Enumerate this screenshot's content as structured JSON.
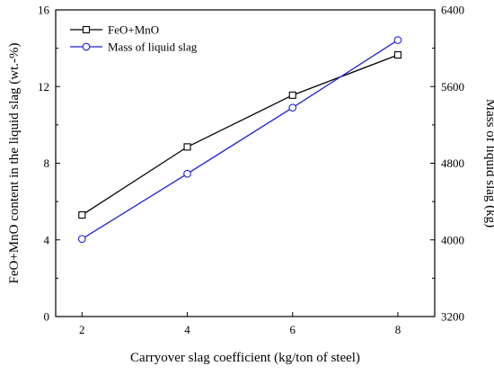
{
  "chart_data": {
    "type": "line",
    "title": "",
    "xlabel": "Carryover slag coefficient (kg/ton of steel)",
    "ylabel_left": "FeO+MnO content in the liquid slag (wt.-%)",
    "ylabel_right": "Mass of liquid slag (kg)",
    "xlim": [
      1.5,
      8.7
    ],
    "ylim_left": [
      0,
      16
    ],
    "ylim_right": [
      3200,
      6400
    ],
    "x_ticks": [
      2,
      4,
      6,
      8
    ],
    "y_ticks_left": [
      0,
      4,
      8,
      12,
      16
    ],
    "y_ticks_right": [
      3200,
      4000,
      4800,
      5600,
      6400
    ],
    "grid": false,
    "legend_position": "top-left",
    "x": [
      2,
      4,
      6,
      8
    ],
    "series": [
      {
        "name": "FeO+MnO",
        "axis": "left",
        "marker": "square",
        "color": "#000000",
        "values": [
          5.3,
          8.85,
          11.55,
          13.65
        ]
      },
      {
        "name": "Mass of liquid slag",
        "axis": "right",
        "marker": "circle",
        "color": "#1f1fd6",
        "values": [
          4010,
          4690,
          5380,
          6085
        ]
      }
    ]
  }
}
